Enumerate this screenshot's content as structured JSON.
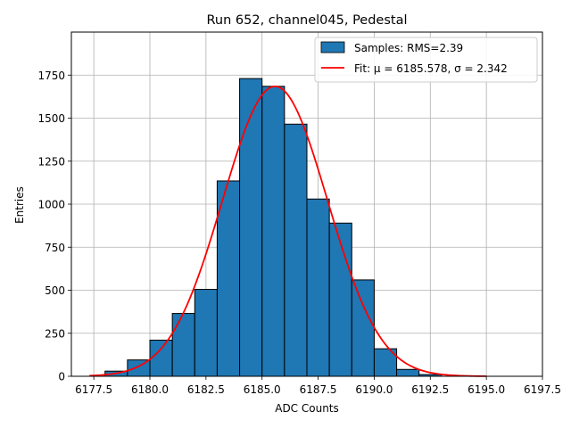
{
  "chart_data": {
    "type": "bar",
    "title": "Run 652, channel045, Pedestal",
    "xlabel": "ADC Counts",
    "ylabel": "Entries",
    "xlim": [
      6176.5,
      6197.5
    ],
    "ylim": [
      0,
      2000
    ],
    "grid": true,
    "legend_position": "top-right",
    "xticks": [
      6177.5,
      6180.0,
      6182.5,
      6185.0,
      6187.5,
      6190.0,
      6192.5,
      6195.0,
      6197.5
    ],
    "xtick_labels": [
      "6177.5",
      "6180.0",
      "6182.5",
      "6185.0",
      "6187.5",
      "6190.0",
      "6192.5",
      "6195.0",
      "6197.5"
    ],
    "yticks": [
      0,
      250,
      500,
      750,
      1000,
      1250,
      1500,
      1750
    ],
    "ytick_labels": [
      "0",
      "250",
      "500",
      "750",
      "1000",
      "1250",
      "1500",
      "1750"
    ],
    "histogram": {
      "name": "Samples: RMS=2.39",
      "color": "#1f77b4",
      "edge_color": "#000000",
      "bin_width": 1,
      "bin_starts": [
        6177,
        6178,
        6179,
        6180,
        6181,
        6182,
        6183,
        6184,
        6185,
        6186,
        6187,
        6188,
        6189,
        6190,
        6191,
        6192,
        6193,
        6194,
        6195,
        6196
      ],
      "values": [
        0,
        30,
        95,
        210,
        365,
        505,
        1135,
        1730,
        1685,
        1465,
        1030,
        890,
        560,
        160,
        40,
        10,
        0,
        0,
        0,
        0
      ]
    },
    "fit": {
      "name": "Fit: μ = 6185.578, σ = 2.342",
      "color": "#ff0000",
      "mu": 6185.578,
      "sigma": 2.342,
      "amplitude": 1685,
      "x_range": [
        6177.3,
        6195.0
      ]
    }
  }
}
